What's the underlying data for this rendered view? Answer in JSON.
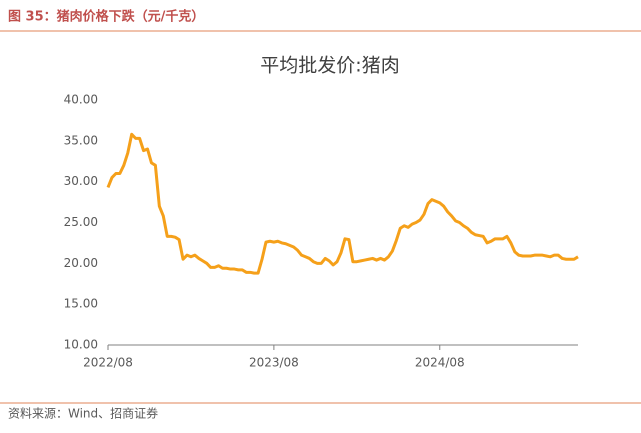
{
  "header": {
    "title": "图 35：猪肉价格下跌（元/千克）"
  },
  "chart_data": {
    "type": "line",
    "title": "平均批发价:猪肉",
    "categories": [
      "2022/08",
      null,
      null,
      null,
      null,
      null,
      null,
      null,
      null,
      null,
      null,
      null,
      null,
      null,
      null,
      null,
      null,
      null,
      null,
      null,
      null,
      null,
      null,
      null,
      null,
      null,
      null,
      null,
      null,
      null,
      null,
      null,
      null,
      null,
      null,
      null,
      null,
      null,
      null,
      null,
      null,
      null,
      "2023/08",
      null,
      null,
      null,
      null,
      null,
      null,
      null,
      null,
      null,
      null,
      null,
      null,
      null,
      null,
      null,
      null,
      null,
      null,
      null,
      null,
      null,
      null,
      null,
      null,
      null,
      null,
      null,
      null,
      null,
      null,
      null,
      null,
      null,
      null,
      null,
      null,
      null,
      null,
      null,
      null,
      null,
      "2024/08",
      null,
      null,
      null,
      null,
      null,
      null,
      null,
      null,
      null,
      null,
      null,
      null,
      null,
      null,
      null,
      null,
      null,
      null,
      null,
      null,
      null,
      null,
      null,
      null,
      null,
      null,
      null,
      null,
      null,
      null,
      null,
      null,
      null,
      null,
      null
    ],
    "series": [
      {
        "name": "平均批发价:猪肉",
        "color": "#f5a01a",
        "values": [
          29.3,
          30.5,
          31,
          31,
          32,
          33.5,
          35.8,
          35.3,
          35.3,
          33.8,
          34,
          32.3,
          32,
          27,
          25.8,
          23.3,
          23.3,
          23.2,
          22.9,
          20.5,
          21,
          20.8,
          21,
          20.6,
          20.3,
          20,
          19.5,
          19.5,
          19.7,
          19.4,
          19.4,
          19.3,
          19.3,
          19.2,
          19.2,
          18.9,
          18.9,
          18.8,
          18.8,
          20.5,
          22.6,
          22.7,
          22.6,
          22.7,
          22.5,
          22.4,
          22.2,
          22.0,
          21.6,
          21,
          20.8,
          20.6,
          20.2,
          20.0,
          20.0,
          20.6,
          20.3,
          19.8,
          20.2,
          21.3,
          23.0,
          22.9,
          20.2,
          20.2,
          20.3,
          20.4,
          20.5,
          20.6,
          20.4,
          20.6,
          20.4,
          20.8,
          21.5,
          22.8,
          24.3,
          24.6,
          24.4,
          24.8,
          25.0,
          25.3,
          26,
          27.3,
          27.8,
          27.6,
          27.4,
          27,
          26.3,
          25.8,
          25.2,
          25.0,
          24.6,
          24.3,
          23.8,
          23.5,
          23.4,
          23.3,
          22.5,
          22.7,
          23,
          23,
          23,
          23.3,
          22.5,
          21.4,
          21,
          20.9,
          20.9,
          20.9,
          21,
          21,
          21,
          20.9,
          20.8,
          21,
          21,
          20.6,
          20.5,
          20.5,
          20.5,
          20.8
        ]
      }
    ],
    "ylim": [
      10,
      40
    ],
    "yticks": [
      {
        "value": 10,
        "label": "10.00"
      },
      {
        "value": 15,
        "label": "15.00"
      },
      {
        "value": 20,
        "label": "20.00"
      },
      {
        "value": 25,
        "label": "25.00"
      },
      {
        "value": 30,
        "label": "30.00"
      },
      {
        "value": 35,
        "label": "35.00"
      },
      {
        "value": 40,
        "label": "40.00"
      }
    ],
    "grid": false
  },
  "footer": {
    "source": "资料来源：Wind、招商证券"
  }
}
